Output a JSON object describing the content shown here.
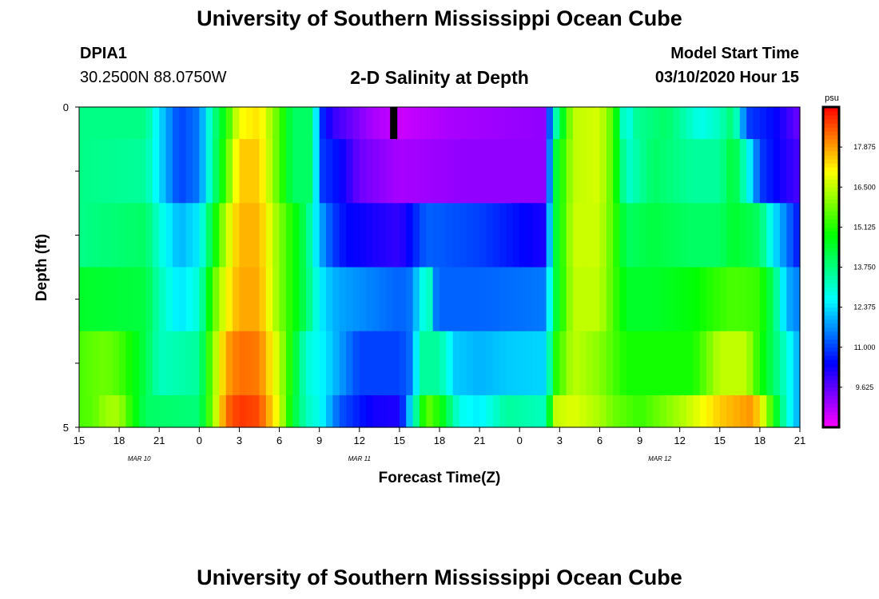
{
  "header": {
    "title": "University of Southern Mississippi Ocean Cube",
    "station": "DPIA1",
    "coords": "30.2500N 88.0750W",
    "plot_title": "2-D Salinity at Depth",
    "start_label": "Model Start Time",
    "start_value": "03/10/2020 Hour 15"
  },
  "footer": {
    "title": "University of Southern Mississippi Ocean Cube"
  },
  "colorbar": {
    "unit": "psu",
    "min": 8.25,
    "max": 19.25,
    "tick_labels": [
      "17.875",
      "16.500",
      "15.125",
      "13.750",
      "12.375",
      "11.000",
      "9.625"
    ],
    "tick_values": [
      17.875,
      16.5,
      15.125,
      13.75,
      12.375,
      11.0,
      9.625
    ]
  },
  "chart_data": {
    "type": "heatmap",
    "title": "2-D Salinity at Depth",
    "xlabel": "Forecast Time(Z)",
    "ylabel": "Depth (ft)",
    "x_range_hours": [
      0,
      54
    ],
    "y_range": [
      0,
      5
    ],
    "y_tick_labels": [
      "0",
      "5"
    ],
    "x_tick_labels": [
      "15",
      "18",
      "21",
      "0",
      "3",
      "6",
      "9",
      "12",
      "15",
      "18",
      "21",
      "0",
      "3",
      "6",
      "9",
      "12",
      "15",
      "18",
      "21"
    ],
    "date_labels": [
      {
        "text": "MAR 10",
        "hour": 4.5
      },
      {
        "text": "MAR 11",
        "hour": 21
      },
      {
        "text": "MAR 12",
        "hour": 43.5
      }
    ],
    "missing_marker": {
      "hour": 23.6,
      "depth_from": 0,
      "depth_to": 0.5
    },
    "depth_bins": [
      [
        0,
        0.5
      ],
      [
        0.5,
        1.5
      ],
      [
        1.5,
        2.5
      ],
      [
        2.5,
        3.5
      ],
      [
        3.5,
        4.5
      ],
      [
        4.5,
        5
      ]
    ],
    "hour_step": 0.5,
    "salinity": [
      [
        [
          0,
          13.7
        ],
        [
          5,
          13.7
        ],
        [
          6,
          12.4
        ],
        [
          7.5,
          11
        ],
        [
          9,
          11.5
        ],
        [
          10,
          13.5
        ],
        [
          11,
          15
        ],
        [
          12,
          17
        ],
        [
          13.5,
          17.3
        ],
        [
          15,
          15.5
        ],
        [
          16,
          14
        ],
        [
          17.5,
          14
        ],
        [
          18,
          11
        ],
        [
          19,
          10
        ],
        [
          22,
          9
        ],
        [
          24,
          8.7
        ],
        [
          28,
          9
        ],
        [
          35,
          9.2
        ],
        [
          35.4,
          12.5
        ],
        [
          36,
          14
        ],
        [
          37,
          16.5
        ],
        [
          39,
          16.7
        ],
        [
          40,
          15.5
        ],
        [
          41,
          12.4
        ],
        [
          41.5,
          13.5
        ],
        [
          44,
          14
        ],
        [
          46.5,
          12.8
        ],
        [
          48,
          13.2
        ],
        [
          49,
          14
        ],
        [
          50,
          11
        ],
        [
          52,
          10.5
        ],
        [
          54,
          9.5
        ]
      ],
      [
        [
          0,
          13.7
        ],
        [
          5,
          13.5
        ],
        [
          6,
          12.4
        ],
        [
          7.5,
          11
        ],
        [
          9,
          11.5
        ],
        [
          10,
          13.5
        ],
        [
          11,
          15.5
        ],
        [
          12,
          17.5
        ],
        [
          13.5,
          17.5
        ],
        [
          15,
          15.5
        ],
        [
          16,
          14
        ],
        [
          17.5,
          14
        ],
        [
          18,
          11
        ],
        [
          19.5,
          10.5
        ],
        [
          21,
          9.5
        ],
        [
          24,
          9
        ],
        [
          29,
          9.2
        ],
        [
          35,
          9.2
        ],
        [
          35.5,
          14
        ],
        [
          37,
          16.5
        ],
        [
          39,
          16.7
        ],
        [
          40,
          15.5
        ],
        [
          41,
          13
        ],
        [
          43,
          14
        ],
        [
          46,
          13.5
        ],
        [
          48,
          13.5
        ],
        [
          49,
          14.5
        ],
        [
          50,
          13
        ],
        [
          51,
          11
        ],
        [
          52.5,
          10.3
        ],
        [
          54,
          9.8
        ]
      ],
      [
        [
          0,
          13.7
        ],
        [
          5,
          14
        ],
        [
          6,
          13
        ],
        [
          7.5,
          12
        ],
        [
          9,
          12.5
        ],
        [
          10,
          14.5
        ],
        [
          11,
          16.5
        ],
        [
          12,
          17.7
        ],
        [
          13.5,
          17.7
        ],
        [
          15,
          16
        ],
        [
          17,
          14
        ],
        [
          18,
          12
        ],
        [
          19,
          11
        ],
        [
          20,
          10.5
        ],
        [
          24,
          10
        ],
        [
          26,
          11.3
        ],
        [
          30,
          11
        ],
        [
          35,
          10.2
        ],
        [
          35.5,
          14
        ],
        [
          37,
          16.6
        ],
        [
          39,
          16.6
        ],
        [
          40,
          15.5
        ],
        [
          41,
          14
        ],
        [
          43,
          14.3
        ],
        [
          46,
          14
        ],
        [
          48,
          14
        ],
        [
          49,
          14.5
        ],
        [
          51,
          14
        ],
        [
          52,
          12.5
        ],
        [
          54,
          10.5
        ]
      ],
      [
        [
          0,
          14.5
        ],
        [
          5,
          14.3
        ],
        [
          6,
          13.3
        ],
        [
          7.5,
          12.4
        ],
        [
          9,
          13
        ],
        [
          10,
          15.5
        ],
        [
          11,
          17
        ],
        [
          12,
          17.8
        ],
        [
          13.5,
          17.8
        ],
        [
          15,
          16
        ],
        [
          17,
          14
        ],
        [
          18,
          12.6
        ],
        [
          19,
          12
        ],
        [
          20,
          11.8
        ],
        [
          24,
          11.3
        ],
        [
          25,
          11.5
        ],
        [
          25.5,
          12.7
        ],
        [
          26.3,
          13.2
        ],
        [
          26.8,
          11.3
        ],
        [
          30,
          11.3
        ],
        [
          35,
          11.5
        ],
        [
          35.5,
          14
        ],
        [
          37,
          16.5
        ],
        [
          39,
          16.5
        ],
        [
          40,
          15.5
        ],
        [
          41,
          14.5
        ],
        [
          43,
          14.5
        ],
        [
          46,
          14.8
        ],
        [
          48,
          15.3
        ],
        [
          49,
          15.5
        ],
        [
          51,
          15.3
        ],
        [
          52,
          14
        ],
        [
          53,
          12
        ],
        [
          54,
          11.5
        ]
      ],
      [
        [
          0,
          15.5
        ],
        [
          2,
          15.8
        ],
        [
          3,
          15.5
        ],
        [
          5,
          14.2
        ],
        [
          6,
          13.2
        ],
        [
          9,
          13.5
        ],
        [
          10,
          16
        ],
        [
          11,
          17.8
        ],
        [
          12,
          18.3
        ],
        [
          13.5,
          18.2
        ],
        [
          15,
          16.5
        ],
        [
          17,
          13
        ],
        [
          18,
          12.7
        ],
        [
          21,
          11
        ],
        [
          24,
          11
        ],
        [
          25,
          11.5
        ],
        [
          25.5,
          13.5
        ],
        [
          27,
          13.5
        ],
        [
          28.2,
          12.2
        ],
        [
          30,
          12
        ],
        [
          32,
          12.2
        ],
        [
          35,
          12.3
        ],
        [
          35.6,
          15
        ],
        [
          37,
          16.5
        ],
        [
          39,
          16
        ],
        [
          40,
          15.5
        ],
        [
          41,
          15
        ],
        [
          46,
          15
        ],
        [
          48,
          16.5
        ],
        [
          50,
          16.5
        ],
        [
          51,
          15
        ],
        [
          52,
          14
        ],
        [
          53,
          13
        ],
        [
          54,
          11.8
        ]
      ],
      [
        [
          0,
          15.5
        ],
        [
          1,
          15.6
        ],
        [
          2,
          16.2
        ],
        [
          3,
          16.3
        ],
        [
          4,
          15
        ],
        [
          5,
          14
        ],
        [
          9,
          13.8
        ],
        [
          10,
          16
        ],
        [
          11,
          18.3
        ],
        [
          12,
          18.8
        ],
        [
          13.5,
          18.6
        ],
        [
          15,
          16.8
        ],
        [
          16,
          14.5
        ],
        [
          17,
          13.2
        ],
        [
          18,
          12.8
        ],
        [
          19.5,
          11.2
        ],
        [
          22,
          10.3
        ],
        [
          24,
          10.2
        ],
        [
          25,
          12.8
        ],
        [
          26,
          15.8
        ],
        [
          27,
          15
        ],
        [
          28.5,
          12.8
        ],
        [
          30,
          12.5
        ],
        [
          32,
          13.5
        ],
        [
          35,
          13.2
        ],
        [
          35.6,
          16.5
        ],
        [
          37,
          16.8
        ],
        [
          39,
          16.3
        ],
        [
          40,
          15.8
        ],
        [
          42,
          15.3
        ],
        [
          45,
          16.3
        ],
        [
          48,
          17.5
        ],
        [
          50.5,
          18
        ],
        [
          51.5,
          16.3
        ],
        [
          52,
          15
        ],
        [
          53,
          13
        ],
        [
          54,
          11.8
        ]
      ]
    ]
  }
}
